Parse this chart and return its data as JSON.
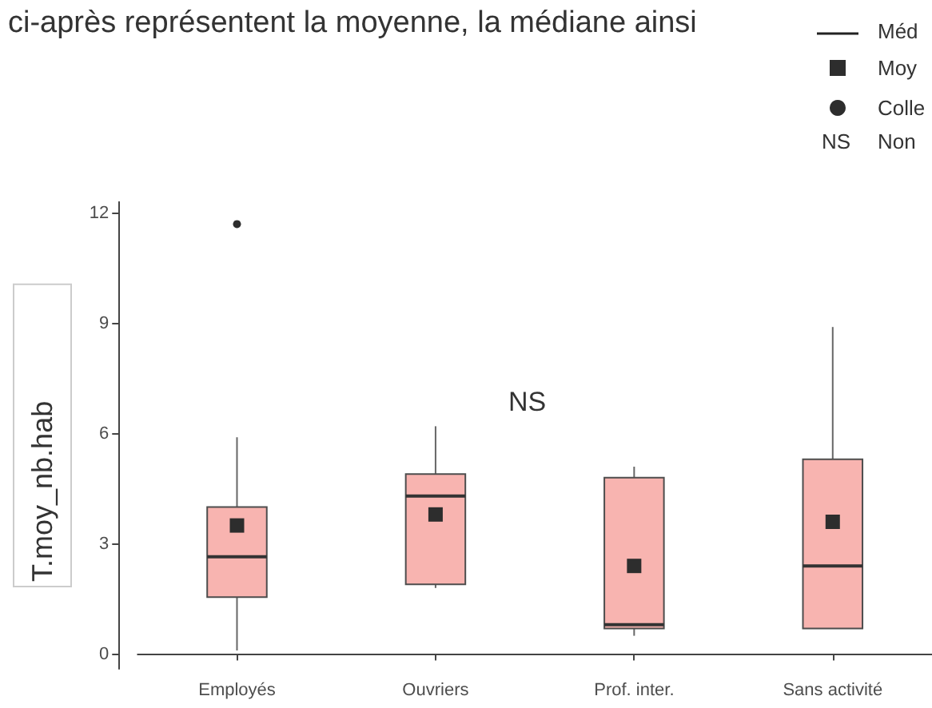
{
  "chart_data": {
    "type": "box",
    "title": "ci-après représentent la moyenne, la médiane ainsi",
    "ylabel": "T.moy_nb.hab",
    "categories": [
      "Employés",
      "Ouvriers",
      "Prof. inter.",
      "Sans activité"
    ],
    "series": [
      {
        "color": "#f8b4b0",
        "boxes": [
          {
            "low": 0.1,
            "q1": 1.55,
            "median": 2.65,
            "q3": 4.0,
            "high": 5.9
          },
          {
            "low": 1.8,
            "q1": 1.9,
            "median": 4.3,
            "q3": 4.9,
            "high": 6.2
          },
          {
            "low": 0.5,
            "q1": 0.7,
            "median": 0.8,
            "q3": 4.8,
            "high": 5.1
          },
          {
            "low": 0.7,
            "q1": 0.7,
            "median": 2.4,
            "q3": 5.3,
            "high": 8.9
          }
        ]
      },
      {
        "type": "scatter",
        "name": "Moy",
        "color": "#2d2d2d",
        "marker": "square",
        "x": [
          "Employés",
          "Ouvriers",
          "Prof. inter.",
          "Sans activité"
        ],
        "values": [
          3.5,
          3.8,
          2.4,
          3.6
        ]
      },
      {
        "type": "scatter",
        "name": "Colle",
        "color": "#2d2d2d",
        "marker": "circle",
        "x": [
          "Employés"
        ],
        "values": [
          11.7
        ]
      }
    ],
    "ylim": [
      -0.4,
      12.3
    ],
    "yticks": [
      0,
      3,
      6,
      9,
      12
    ],
    "legend": "top right",
    "annotations": [
      "NS",
      "Méd",
      "NS",
      "Non"
    ]
  }
}
